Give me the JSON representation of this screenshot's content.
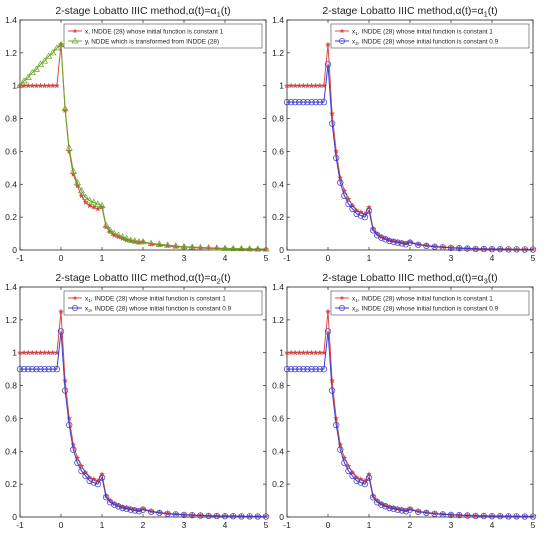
{
  "chart_data": [
    {
      "type": "line",
      "title_main": "2-stage Lobatto IIIC method,",
      "title_alpha": "α(t)=α",
      "title_sub": "1",
      "title_tail": "(t)",
      "xlim": [
        -1,
        5
      ],
      "ylim": [
        0,
        1.4
      ],
      "xticks": [
        -1,
        0,
        1,
        2,
        3,
        4,
        5
      ],
      "yticks": [
        0,
        0.2,
        0.4,
        0.6,
        0.8,
        1,
        1.2,
        1.4
      ],
      "grid": false,
      "legend": "top-right",
      "series": [
        {
          "label_main": "x, INDDE (28) whose initial function is constant 1",
          "label_sub": "",
          "color": "#d9484a",
          "marker": "star",
          "x": [
            -1,
            -0.9,
            -0.8,
            -0.7,
            -0.6,
            -0.5,
            -0.4,
            -0.3,
            -0.2,
            -0.1,
            0,
            0.1,
            0.2,
            0.3,
            0.4,
            0.5,
            0.6,
            0.7,
            0.8,
            0.9,
            1,
            1.1,
            1.2,
            1.3,
            1.4,
            1.5,
            1.6,
            1.7,
            1.8,
            1.9,
            2,
            2.2,
            2.4,
            2.6,
            2.8,
            3,
            3.2,
            3.4,
            3.6,
            3.8,
            4,
            4.2,
            4.4,
            4.6,
            4.8,
            5
          ],
          "y": [
            1,
            1,
            1,
            1,
            1,
            1,
            1,
            1,
            1,
            1,
            1.25,
            0.85,
            0.6,
            0.46,
            0.39,
            0.33,
            0.29,
            0.27,
            0.26,
            0.25,
            0.26,
            0.14,
            0.11,
            0.09,
            0.08,
            0.07,
            0.06,
            0.055,
            0.05,
            0.045,
            0.05,
            0.035,
            0.03,
            0.025,
            0.02,
            0.018,
            0.015,
            0.012,
            0.01,
            0.009,
            0.008,
            0.007,
            0.006,
            0.005,
            0.005,
            0.005
          ]
        },
        {
          "label_main": "y, NDDE which is transformed from INDDE (28)",
          "label_sub": "",
          "color": "#6aa526",
          "marker": "triangle",
          "x": [
            -1,
            -0.9,
            -0.8,
            -0.7,
            -0.6,
            -0.5,
            -0.4,
            -0.3,
            -0.2,
            -0.1,
            0,
            0.1,
            0.2,
            0.3,
            0.4,
            0.5,
            0.6,
            0.7,
            0.8,
            0.9,
            1,
            1.1,
            1.2,
            1.3,
            1.4,
            1.5,
            1.6,
            1.7,
            1.8,
            1.9,
            2,
            2.2,
            2.4,
            2.6,
            2.8,
            3,
            3.2,
            3.4,
            3.6,
            3.8,
            4,
            4.2,
            4.4,
            4.6,
            4.8,
            5
          ],
          "y": [
            1,
            1.03,
            1.05,
            1.08,
            1.1,
            1.13,
            1.15,
            1.18,
            1.2,
            1.23,
            1.25,
            0.86,
            0.62,
            0.48,
            0.41,
            0.36,
            0.32,
            0.3,
            0.29,
            0.28,
            0.27,
            0.15,
            0.12,
            0.1,
            0.09,
            0.08,
            0.07,
            0.06,
            0.055,
            0.05,
            0.05,
            0.04,
            0.035,
            0.03,
            0.025,
            0.02,
            0.018,
            0.016,
            0.014,
            0.012,
            0.01,
            0.009,
            0.008,
            0.007,
            0.006,
            0.006
          ]
        }
      ]
    },
    {
      "type": "line",
      "title_main": "2-stage Lobatto IIIC method,",
      "title_alpha": "α(t)=α",
      "title_sub": "1",
      "title_tail": "(t)",
      "xlim": [
        -1,
        5
      ],
      "ylim": [
        0,
        1.4
      ],
      "xticks": [
        -1,
        0,
        1,
        2,
        3,
        4,
        5
      ],
      "yticks": [
        0,
        0.2,
        0.4,
        0.6,
        0.8,
        1,
        1.2,
        1.4
      ],
      "grid": false,
      "legend": "top-right",
      "series": [
        {
          "label_main": "x",
          "label_sub": "1",
          "label_tail": ", INDDE (28) whose initial function is constant 1",
          "color": "#d9484a",
          "marker": "star",
          "x": [
            -1,
            -0.9,
            -0.8,
            -0.7,
            -0.6,
            -0.5,
            -0.4,
            -0.3,
            -0.2,
            -0.1,
            0,
            0.1,
            0.2,
            0.3,
            0.4,
            0.5,
            0.6,
            0.7,
            0.8,
            0.9,
            1,
            1.1,
            1.2,
            1.3,
            1.4,
            1.5,
            1.6,
            1.7,
            1.8,
            1.9,
            2,
            2.2,
            2.4,
            2.6,
            2.8,
            3,
            3.2,
            3.4,
            3.6,
            3.8,
            4,
            4.2,
            4.4,
            4.6,
            4.8,
            5
          ],
          "y": [
            1,
            1,
            1,
            1,
            1,
            1,
            1,
            1,
            1,
            1,
            1.25,
            0.83,
            0.6,
            0.44,
            0.36,
            0.31,
            0.27,
            0.24,
            0.23,
            0.22,
            0.26,
            0.13,
            0.1,
            0.08,
            0.07,
            0.06,
            0.055,
            0.05,
            0.045,
            0.04,
            0.05,
            0.035,
            0.028,
            0.022,
            0.018,
            0.015,
            0.012,
            0.01,
            0.008,
            0.007,
            0.006,
            0.005,
            0.005,
            0.004,
            0.004,
            0.004
          ]
        },
        {
          "label_main": "x",
          "label_sub": "2",
          "label_tail": ", INDDE (28) whose  initial function is constant 0.9",
          "color": "#3a3ad0",
          "marker": "circle",
          "x": [
            -1,
            -0.9,
            -0.8,
            -0.7,
            -0.6,
            -0.5,
            -0.4,
            -0.3,
            -0.2,
            -0.1,
            0,
            0.1,
            0.2,
            0.3,
            0.4,
            0.5,
            0.6,
            0.7,
            0.8,
            0.9,
            1,
            1.1,
            1.2,
            1.3,
            1.4,
            1.5,
            1.6,
            1.7,
            1.8,
            1.9,
            2,
            2.2,
            2.4,
            2.6,
            2.8,
            3,
            3.2,
            3.4,
            3.6,
            3.8,
            4,
            4.2,
            4.4,
            4.6,
            4.8,
            5
          ],
          "y": [
            0.9,
            0.9,
            0.9,
            0.9,
            0.9,
            0.9,
            0.9,
            0.9,
            0.9,
            0.9,
            1.13,
            0.77,
            0.56,
            0.41,
            0.33,
            0.28,
            0.25,
            0.22,
            0.21,
            0.2,
            0.24,
            0.12,
            0.09,
            0.075,
            0.065,
            0.055,
            0.05,
            0.045,
            0.04,
            0.035,
            0.045,
            0.032,
            0.025,
            0.02,
            0.016,
            0.013,
            0.011,
            0.009,
            0.007,
            0.006,
            0.005,
            0.005,
            0.004,
            0.004,
            0.003,
            0.003
          ]
        }
      ]
    },
    {
      "type": "line",
      "title_main": "2-stage Lobatto IIIC method,",
      "title_alpha": "α(t)=α",
      "title_sub": "2",
      "title_tail": "(t)",
      "xlim": [
        -1,
        5
      ],
      "ylim": [
        0,
        1.4
      ],
      "xticks": [
        -1,
        0,
        1,
        2,
        3,
        4,
        5
      ],
      "yticks": [
        0,
        0.2,
        0.4,
        0.6,
        0.8,
        1,
        1.2,
        1.4
      ],
      "grid": false,
      "legend": "top-right",
      "series": [
        {
          "label_main": "x",
          "label_sub": "1",
          "label_tail": ", INDDE (28) whose initial function is constant 1",
          "color": "#d9484a",
          "marker": "star",
          "x": [
            -1,
            -0.9,
            -0.8,
            -0.7,
            -0.6,
            -0.5,
            -0.4,
            -0.3,
            -0.2,
            -0.1,
            0,
            0.1,
            0.2,
            0.3,
            0.4,
            0.5,
            0.6,
            0.7,
            0.8,
            0.9,
            1,
            1.1,
            1.2,
            1.3,
            1.4,
            1.5,
            1.6,
            1.7,
            1.8,
            1.9,
            2,
            2.2,
            2.4,
            2.6,
            2.8,
            3,
            3.2,
            3.4,
            3.6,
            3.8,
            4,
            4.2,
            4.4,
            4.6,
            4.8,
            5
          ],
          "y": [
            1,
            1,
            1,
            1,
            1,
            1,
            1,
            1,
            1,
            1,
            1.25,
            0.83,
            0.6,
            0.44,
            0.36,
            0.31,
            0.27,
            0.24,
            0.23,
            0.22,
            0.26,
            0.13,
            0.1,
            0.08,
            0.07,
            0.06,
            0.055,
            0.05,
            0.045,
            0.04,
            0.05,
            0.035,
            0.028,
            0.022,
            0.018,
            0.015,
            0.012,
            0.01,
            0.008,
            0.007,
            0.006,
            0.005,
            0.005,
            0.004,
            0.004,
            0.004
          ]
        },
        {
          "label_main": "x",
          "label_sub": "2",
          "label_tail": ", INDDE (28) whose  initial function is constant 0.9",
          "color": "#3a3ad0",
          "marker": "circle",
          "x": [
            -1,
            -0.9,
            -0.8,
            -0.7,
            -0.6,
            -0.5,
            -0.4,
            -0.3,
            -0.2,
            -0.1,
            0,
            0.1,
            0.2,
            0.3,
            0.4,
            0.5,
            0.6,
            0.7,
            0.8,
            0.9,
            1,
            1.1,
            1.2,
            1.3,
            1.4,
            1.5,
            1.6,
            1.7,
            1.8,
            1.9,
            2,
            2.2,
            2.4,
            2.6,
            2.8,
            3,
            3.2,
            3.4,
            3.6,
            3.8,
            4,
            4.2,
            4.4,
            4.6,
            4.8,
            5
          ],
          "y": [
            0.9,
            0.9,
            0.9,
            0.9,
            0.9,
            0.9,
            0.9,
            0.9,
            0.9,
            0.9,
            1.13,
            0.77,
            0.56,
            0.41,
            0.33,
            0.28,
            0.25,
            0.22,
            0.21,
            0.2,
            0.24,
            0.12,
            0.09,
            0.075,
            0.065,
            0.055,
            0.05,
            0.045,
            0.04,
            0.035,
            0.045,
            0.032,
            0.025,
            0.02,
            0.016,
            0.013,
            0.011,
            0.009,
            0.007,
            0.006,
            0.005,
            0.005,
            0.004,
            0.004,
            0.003,
            0.003
          ]
        }
      ]
    },
    {
      "type": "line",
      "title_main": "2-stage Lobatto IIIC method,",
      "title_alpha": "α(t)=α",
      "title_sub": "3",
      "title_tail": "(t)",
      "xlim": [
        -1,
        5
      ],
      "ylim": [
        0,
        1.4
      ],
      "xticks": [
        -1,
        0,
        1,
        2,
        3,
        4,
        5
      ],
      "yticks": [
        0,
        0.2,
        0.4,
        0.6,
        0.8,
        1,
        1.2,
        1.4
      ],
      "grid": false,
      "legend": "top-right",
      "series": [
        {
          "label_main": "x",
          "label_sub": "1",
          "label_tail": ", INDDE (28) whose initial function is constant 1",
          "color": "#d9484a",
          "marker": "star",
          "x": [
            -1,
            -0.9,
            -0.8,
            -0.7,
            -0.6,
            -0.5,
            -0.4,
            -0.3,
            -0.2,
            -0.1,
            0,
            0.1,
            0.2,
            0.3,
            0.4,
            0.5,
            0.6,
            0.7,
            0.8,
            0.9,
            1,
            1.1,
            1.2,
            1.3,
            1.4,
            1.5,
            1.6,
            1.7,
            1.8,
            1.9,
            2,
            2.2,
            2.4,
            2.6,
            2.8,
            3,
            3.2,
            3.4,
            3.6,
            3.8,
            4,
            4.2,
            4.4,
            4.6,
            4.8,
            5
          ],
          "y": [
            1,
            1,
            1,
            1,
            1,
            1,
            1,
            1,
            1,
            1,
            1.25,
            0.83,
            0.6,
            0.44,
            0.36,
            0.31,
            0.27,
            0.24,
            0.23,
            0.22,
            0.26,
            0.13,
            0.1,
            0.08,
            0.07,
            0.06,
            0.055,
            0.05,
            0.045,
            0.04,
            0.05,
            0.035,
            0.028,
            0.022,
            0.018,
            0.015,
            0.012,
            0.01,
            0.008,
            0.007,
            0.006,
            0.005,
            0.005,
            0.004,
            0.004,
            0.004
          ]
        },
        {
          "label_main": "x",
          "label_sub": "2",
          "label_tail": ", INDDE (28) whose  initial function is constant 0.9",
          "color": "#3a3ad0",
          "marker": "circle",
          "x": [
            -1,
            -0.9,
            -0.8,
            -0.7,
            -0.6,
            -0.5,
            -0.4,
            -0.3,
            -0.2,
            -0.1,
            0,
            0.1,
            0.2,
            0.3,
            0.4,
            0.5,
            0.6,
            0.7,
            0.8,
            0.9,
            1,
            1.1,
            1.2,
            1.3,
            1.4,
            1.5,
            1.6,
            1.7,
            1.8,
            1.9,
            2,
            2.2,
            2.4,
            2.6,
            2.8,
            3,
            3.2,
            3.4,
            3.6,
            3.8,
            4,
            4.2,
            4.4,
            4.6,
            4.8,
            5
          ],
          "y": [
            0.9,
            0.9,
            0.9,
            0.9,
            0.9,
            0.9,
            0.9,
            0.9,
            0.9,
            0.9,
            1.13,
            0.77,
            0.56,
            0.41,
            0.33,
            0.28,
            0.25,
            0.22,
            0.21,
            0.2,
            0.24,
            0.12,
            0.09,
            0.075,
            0.065,
            0.055,
            0.05,
            0.045,
            0.04,
            0.035,
            0.045,
            0.032,
            0.025,
            0.02,
            0.016,
            0.013,
            0.011,
            0.009,
            0.007,
            0.006,
            0.005,
            0.005,
            0.004,
            0.004,
            0.003,
            0.003
          ]
        }
      ]
    }
  ]
}
